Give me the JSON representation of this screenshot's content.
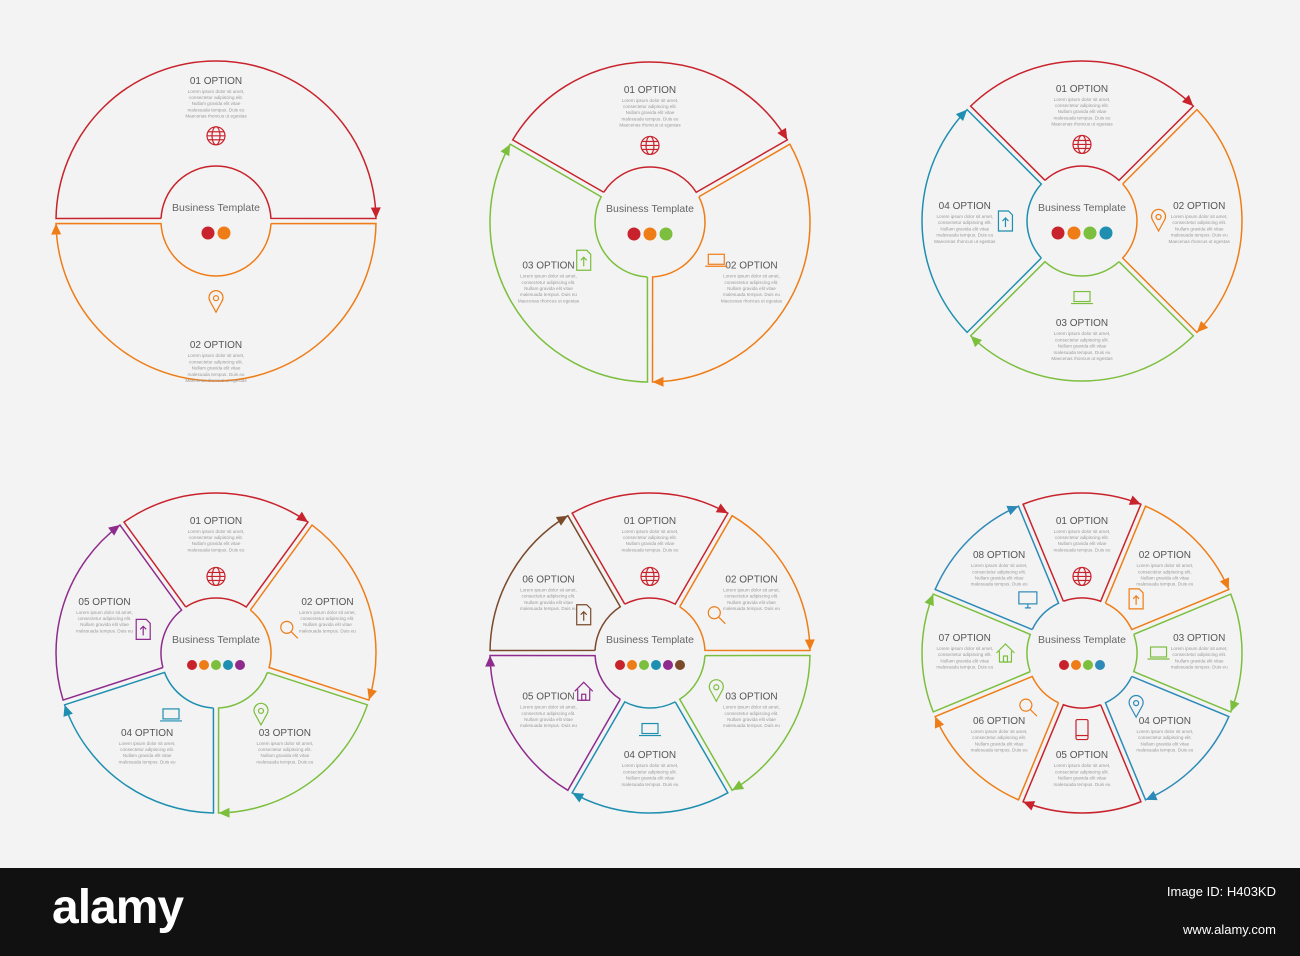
{
  "center_label": "Business Template",
  "lorem": [
    "Lorem ipsum dolor sit amet,",
    "consectetur adipiscing elit.",
    "Nullam gravida elit vitae",
    "malesuada tempus. Duis eu",
    "Maecenas rhoncus ut egestas"
  ],
  "colors": {
    "red": "#c8232c",
    "orange": "#ef7d17",
    "green": "#7cbf3e",
    "teal": "#1e8fb0",
    "purple": "#8e2b8c",
    "brown": "#7a4a2b",
    "blue": "#2d8ab8"
  },
  "diagrams": [
    {
      "count": 2,
      "segments": [
        {
          "title": "01 OPTION",
          "color": "#c8232c",
          "icon": "globe-icon"
        },
        {
          "title": "02 OPTION",
          "color": "#ef7d17",
          "icon": "location-pin-icon"
        }
      ]
    },
    {
      "count": 3,
      "segments": [
        {
          "title": "01 OPTION",
          "color": "#c8232c",
          "icon": "globe-icon"
        },
        {
          "title": "02 OPTION",
          "color": "#ef7d17",
          "icon": "laptop-icon"
        },
        {
          "title": "03 OPTION",
          "color": "#7cbf3e",
          "icon": "document-upload-icon"
        }
      ]
    },
    {
      "count": 4,
      "segments": [
        {
          "title": "01 OPTION",
          "color": "#c8232c",
          "icon": "globe-icon"
        },
        {
          "title": "02 OPTION",
          "color": "#ef7d17",
          "icon": "location-pin-icon"
        },
        {
          "title": "03 OPTION",
          "color": "#7cbf3e",
          "icon": "laptop-icon"
        },
        {
          "title": "04 OPTION",
          "color": "#1e8fb0",
          "icon": "document-upload-icon"
        }
      ]
    },
    {
      "count": 5,
      "segments": [
        {
          "title": "01 OPTION",
          "color": "#c8232c",
          "icon": "globe-icon"
        },
        {
          "title": "02 OPTION",
          "color": "#ef7d17",
          "icon": "magnifier-icon"
        },
        {
          "title": "03 OPTION",
          "color": "#7cbf3e",
          "icon": "location-pin-icon"
        },
        {
          "title": "04 OPTION",
          "color": "#1e8fb0",
          "icon": "laptop-icon"
        },
        {
          "title": "05 OPTION",
          "color": "#8e2b8c",
          "icon": "document-upload-icon"
        }
      ]
    },
    {
      "count": 6,
      "segments": [
        {
          "title": "01 OPTION",
          "color": "#c8232c",
          "icon": "globe-icon"
        },
        {
          "title": "02 OPTION",
          "color": "#ef7d17",
          "icon": "magnifier-icon"
        },
        {
          "title": "03 OPTION",
          "color": "#7cbf3e",
          "icon": "location-pin-icon"
        },
        {
          "title": "04 OPTION",
          "color": "#1e8fb0",
          "icon": "laptop-icon"
        },
        {
          "title": "05 OPTION",
          "color": "#8e2b8c",
          "icon": "house-icon"
        },
        {
          "title": "06 OPTION",
          "color": "#7a4a2b",
          "icon": "document-upload-icon"
        }
      ]
    },
    {
      "count": 8,
      "segments": [
        {
          "title": "01 OPTION",
          "color": "#c8232c",
          "icon": "globe-icon"
        },
        {
          "title": "02 OPTION",
          "color": "#ef7d17",
          "icon": "document-upload-icon"
        },
        {
          "title": "03 OPTION",
          "color": "#7cbf3e",
          "icon": "laptop-icon"
        },
        {
          "title": "04 OPTION",
          "color": "#2d8ab8",
          "icon": "location-pin-icon"
        },
        {
          "title": "05 OPTION",
          "color": "#c8232c",
          "icon": "tablet-icon"
        },
        {
          "title": "06 OPTION",
          "color": "#ef7d17",
          "icon": "magnifier-icon"
        },
        {
          "title": "07 OPTION",
          "color": "#7cbf3e",
          "icon": "house-icon"
        },
        {
          "title": "08 OPTION",
          "color": "#2d8ab8",
          "icon": "monitor-icon"
        }
      ]
    }
  ],
  "footer": {
    "logo": "alamy",
    "image_id": "Image ID: H403KD",
    "website": "www.alamy.com"
  }
}
